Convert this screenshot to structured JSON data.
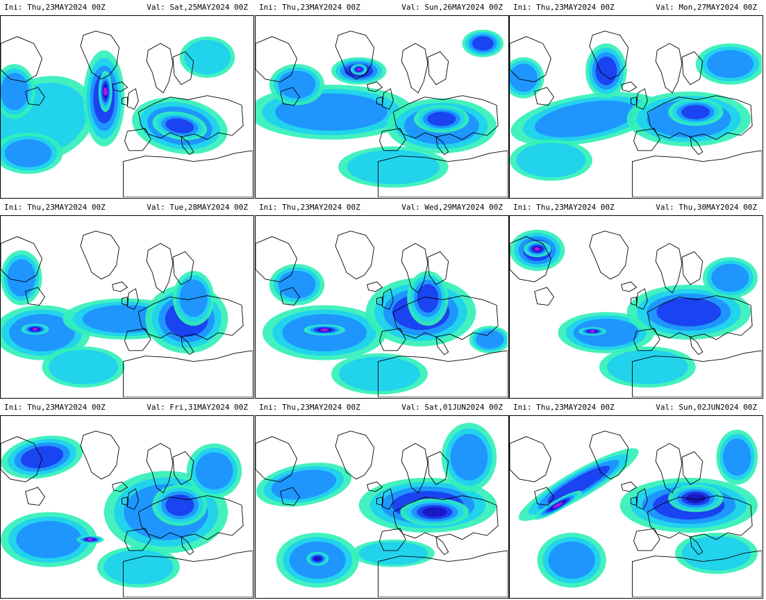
{
  "panels": [
    {
      "ini": "Ini: Thu,23MAY2024 00Z",
      "val": "Val: Sat,25MAY2024 00Z"
    },
    {
      "ini": "Ini: Thu,23MAY2024 00Z",
      "val": "Val: Sun,26MAY2024 00Z"
    },
    {
      "ini": "Ini: Thu,23MAY2024 00Z",
      "val": "Val: Mon,27MAY2024 00Z"
    },
    {
      "ini": "Ini: Thu,23MAY2024 00Z",
      "val": "Val: Tue,28MAY2024 00Z"
    },
    {
      "ini": "Ini: Thu,23MAY2024 00Z",
      "val": "Val: Wed,29MAY2024 00Z"
    },
    {
      "ini": "Ini: Thu,23MAY2024 00Z",
      "val": "Val: Thu,30MAY2024 00Z"
    },
    {
      "ini": "Ini: Thu,23MAY2024 00Z",
      "val": "Val: Fri,31MAY2024 00Z"
    },
    {
      "ini": "Ini: Thu,23MAY2024 00Z",
      "val": "Val: Sat,01JUN2024 00Z"
    },
    {
      "ini": "Ini: Thu,23MAY2024 00Z",
      "val": "Val: Sun,02JUN2024 00Z"
    }
  ],
  "colors": {
    "background": "#ffffff",
    "light": "#33f0b8",
    "cyan": "#1fd0f0",
    "mid": "#1e90ff",
    "blue": "#1a3cf0",
    "deep": "#1a14c0",
    "peak": "#c218e0",
    "coast": "#000000"
  }
}
